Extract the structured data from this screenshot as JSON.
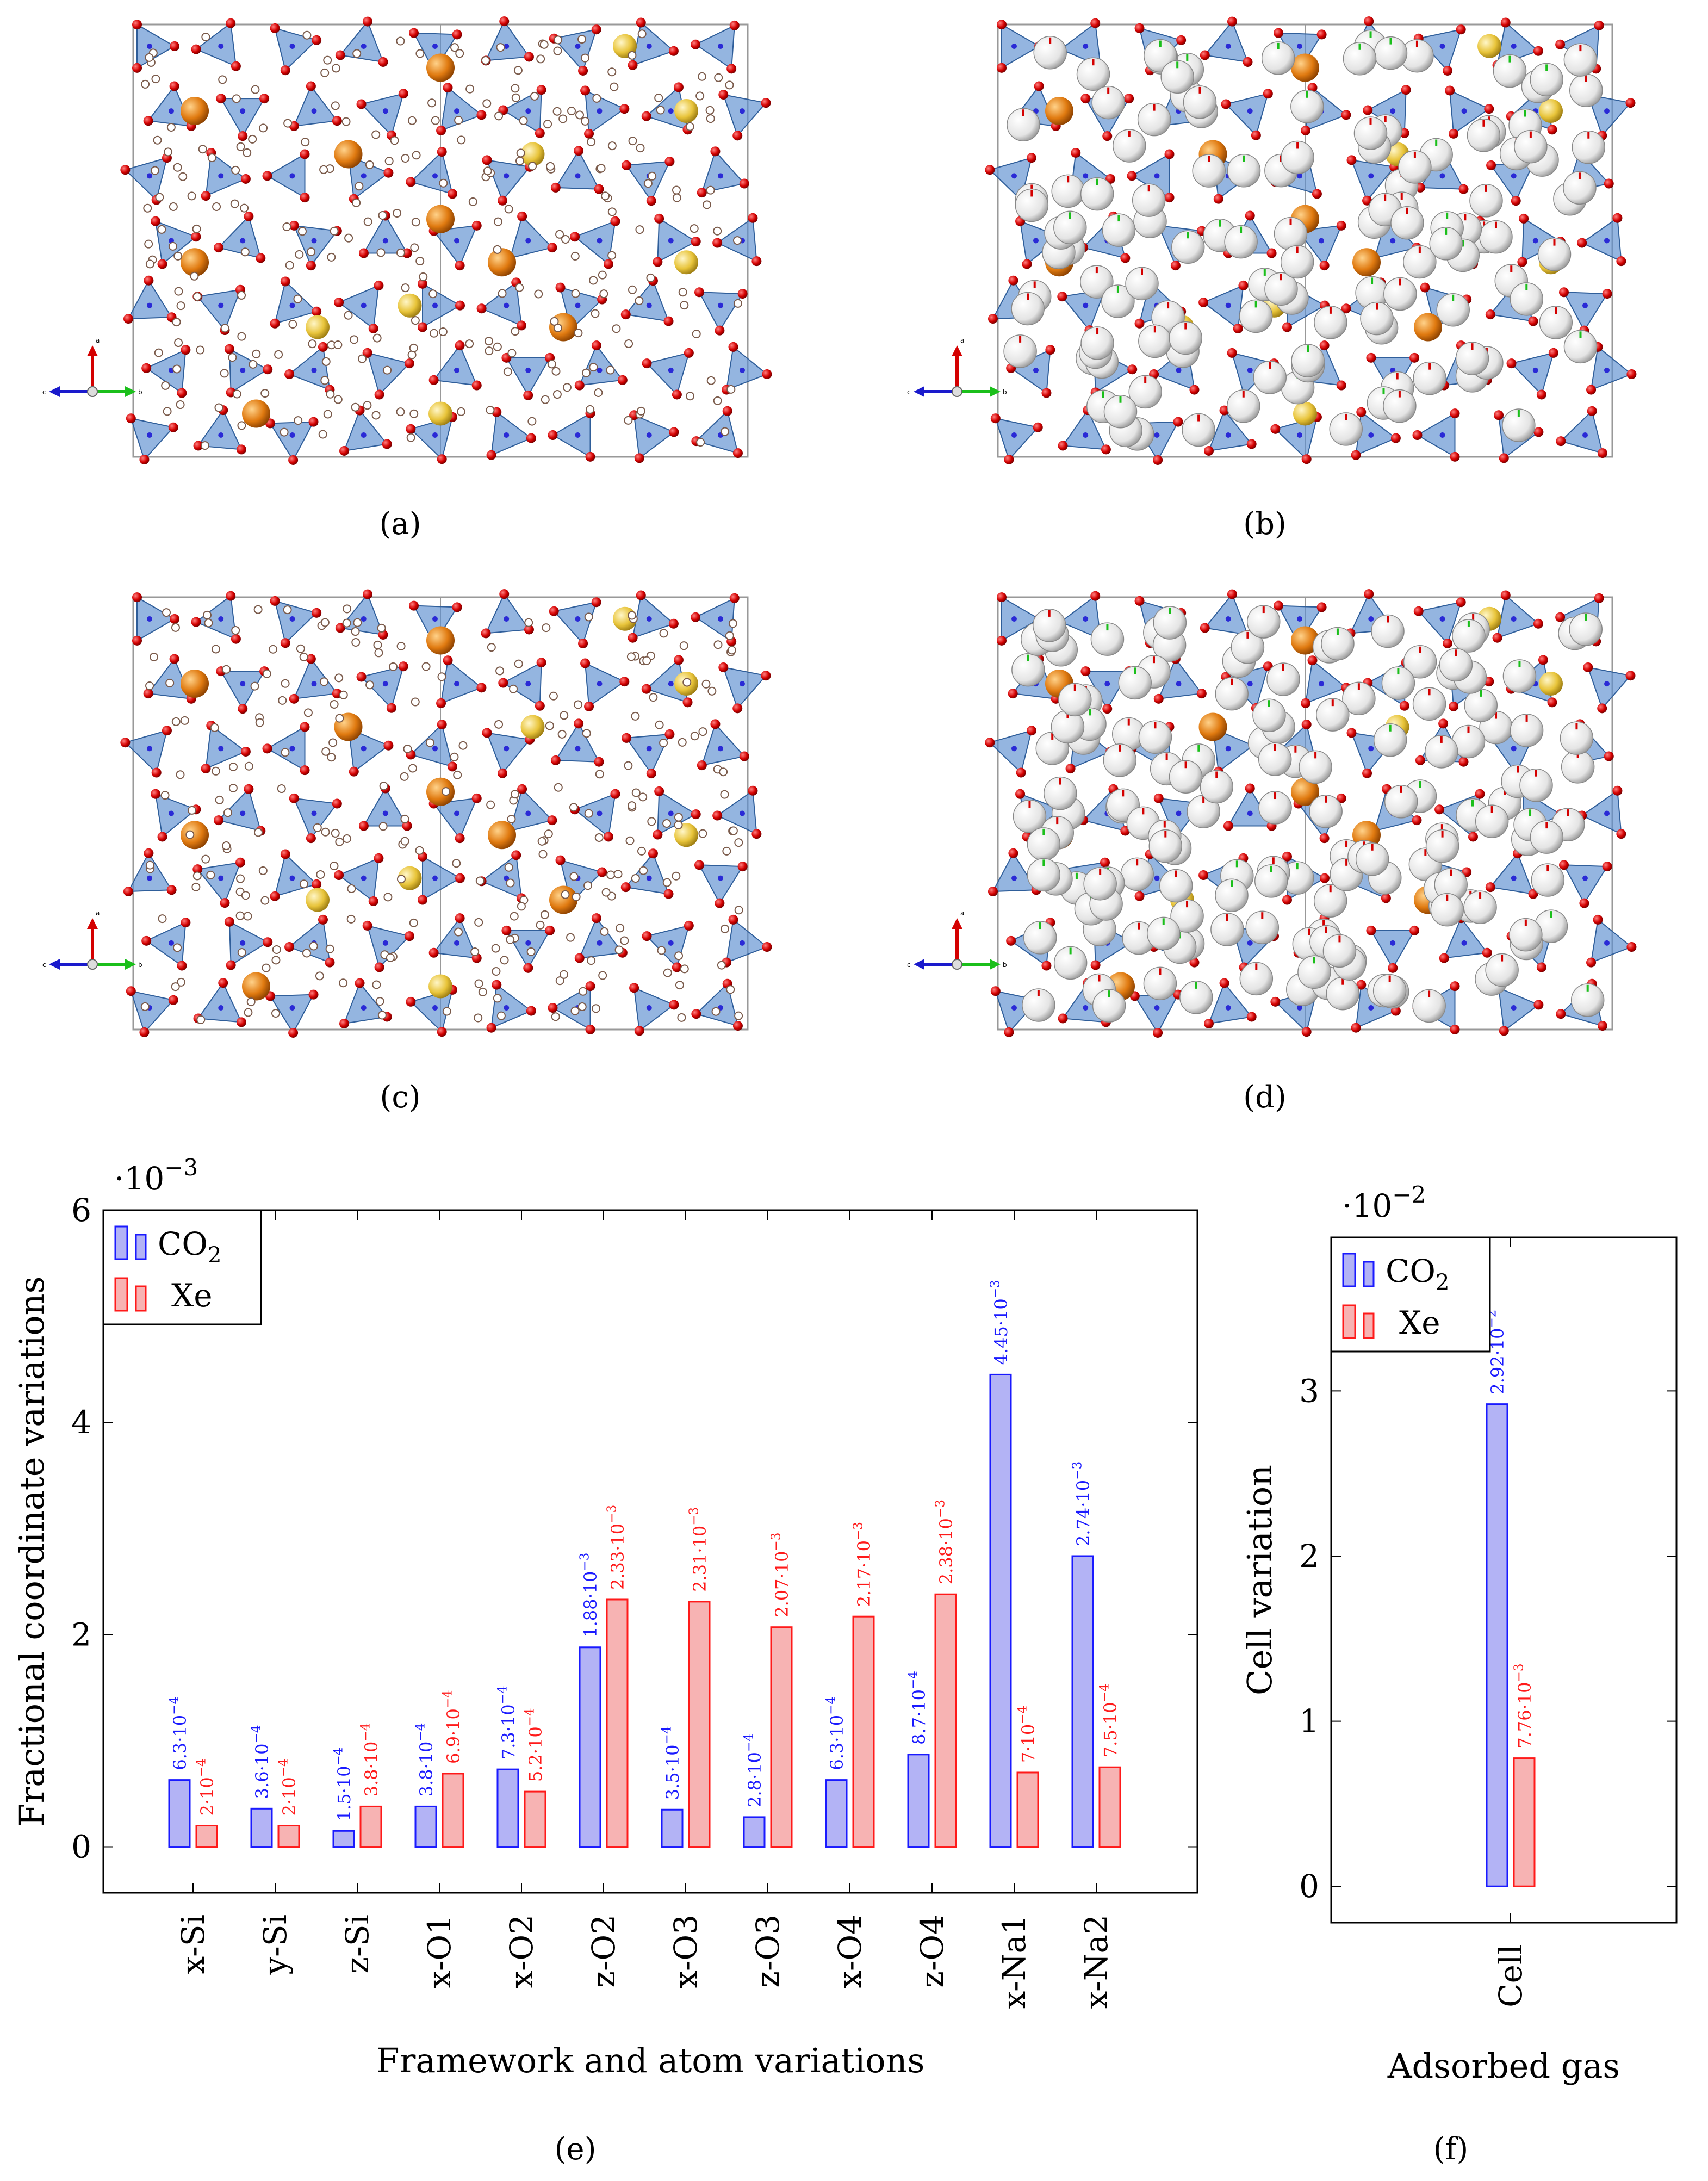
{
  "panels": [
    {
      "id": "a",
      "caption": "(a)",
      "kind": "structure",
      "guest": "water"
    },
    {
      "id": "b",
      "caption": "(b)",
      "kind": "structure",
      "guest": "CO2"
    },
    {
      "id": "c",
      "caption": "(c)",
      "kind": "structure",
      "guest": "water"
    },
    {
      "id": "d",
      "caption": "(d)",
      "kind": "structure",
      "guest": "Xe"
    }
  ],
  "axis_triad": {
    "up": "a",
    "left": "c",
    "right": "b"
  },
  "colors": {
    "co2_fill": "#b3b3f5",
    "co2_stroke": "#1a1aff",
    "co2_text": "#1a1aff",
    "xe_fill": "#f7b3b3",
    "xe_stroke": "#ff1a1a",
    "xe_text": "#ff1a1a",
    "oxygen": "#d40000",
    "silicon": "#2a2ad6",
    "sodium_orange": "#e07a10",
    "sodium_yellow": "#e8c43a",
    "tetra_fill": "#5b8ed0",
    "guest_white": "#e6e6e6"
  },
  "chart_data": [
    {
      "id": "e",
      "caption": "(e)",
      "type": "bar",
      "categories": [
        "x-Si",
        "y-Si",
        "z-Si",
        "x-O1",
        "x-O2",
        "z-O2",
        "x-O3",
        "z-O3",
        "x-O4",
        "z-O4",
        "x-Na1",
        "x-Na2"
      ],
      "series": [
        {
          "name": "CO2",
          "values": [
            0.00063,
            0.00036,
            0.00015,
            0.00038,
            0.00073,
            0.00188,
            0.00035,
            0.00028,
            0.00063,
            0.00087,
            0.00445,
            0.00274
          ],
          "labels": [
            "6.3·10−4",
            "3.6·10−4",
            "1.5·10−4",
            "3.8·10−4",
            "7.3·10−4",
            "1.88·10−3",
            "3.5·10−4",
            "2.8·10−4",
            "6.3·10−4",
            "8.7·10−4",
            "4.45·10−3",
            "2.74·10−3"
          ]
        },
        {
          "name": "Xe",
          "values": [
            0.0002,
            0.0002,
            0.00038,
            0.00069,
            0.00052,
            0.00233,
            0.00231,
            0.00207,
            0.00217,
            0.00238,
            0.0007,
            0.00075
          ],
          "labels": [
            "2·10−4",
            "2·10−4",
            "3.8·10−4",
            "6.9·10−4",
            "5.2·10−4",
            "2.33·10−3",
            "2.31·10−3",
            "2.07·10−3",
            "2.17·10−3",
            "2.38·10−3",
            "7·10−4",
            "7.5·10−4"
          ]
        }
      ],
      "xlabel": "Framework and atom variations",
      "ylabel": "Fractional coordinate variations",
      "scale_label": "·10−3",
      "scale": 0.001,
      "ylim": [
        -0.0004329,
        0.006
      ],
      "yticks": [
        0,
        2,
        4,
        6
      ],
      "legend": [
        "CO2",
        "Xe"
      ],
      "legend_position": "top-left"
    },
    {
      "id": "f",
      "caption": "(f)",
      "type": "bar",
      "categories": [
        "Cell"
      ],
      "series": [
        {
          "name": "CO2",
          "values": [
            0.0292
          ],
          "labels": [
            "2.92·10−2"
          ]
        },
        {
          "name": "Xe",
          "values": [
            0.00776
          ],
          "labels": [
            "7.76·10−3"
          ]
        }
      ],
      "xlabel": "Adsorbed gas",
      "ylabel": "Cell variation",
      "scale_label": "·10−2",
      "scale": 0.01,
      "ylim": [
        -0.0022,
        0.0393
      ],
      "yticks": [
        0,
        1,
        2,
        3
      ],
      "legend": [
        "CO2",
        "Xe"
      ],
      "legend_position": "top-left"
    }
  ]
}
